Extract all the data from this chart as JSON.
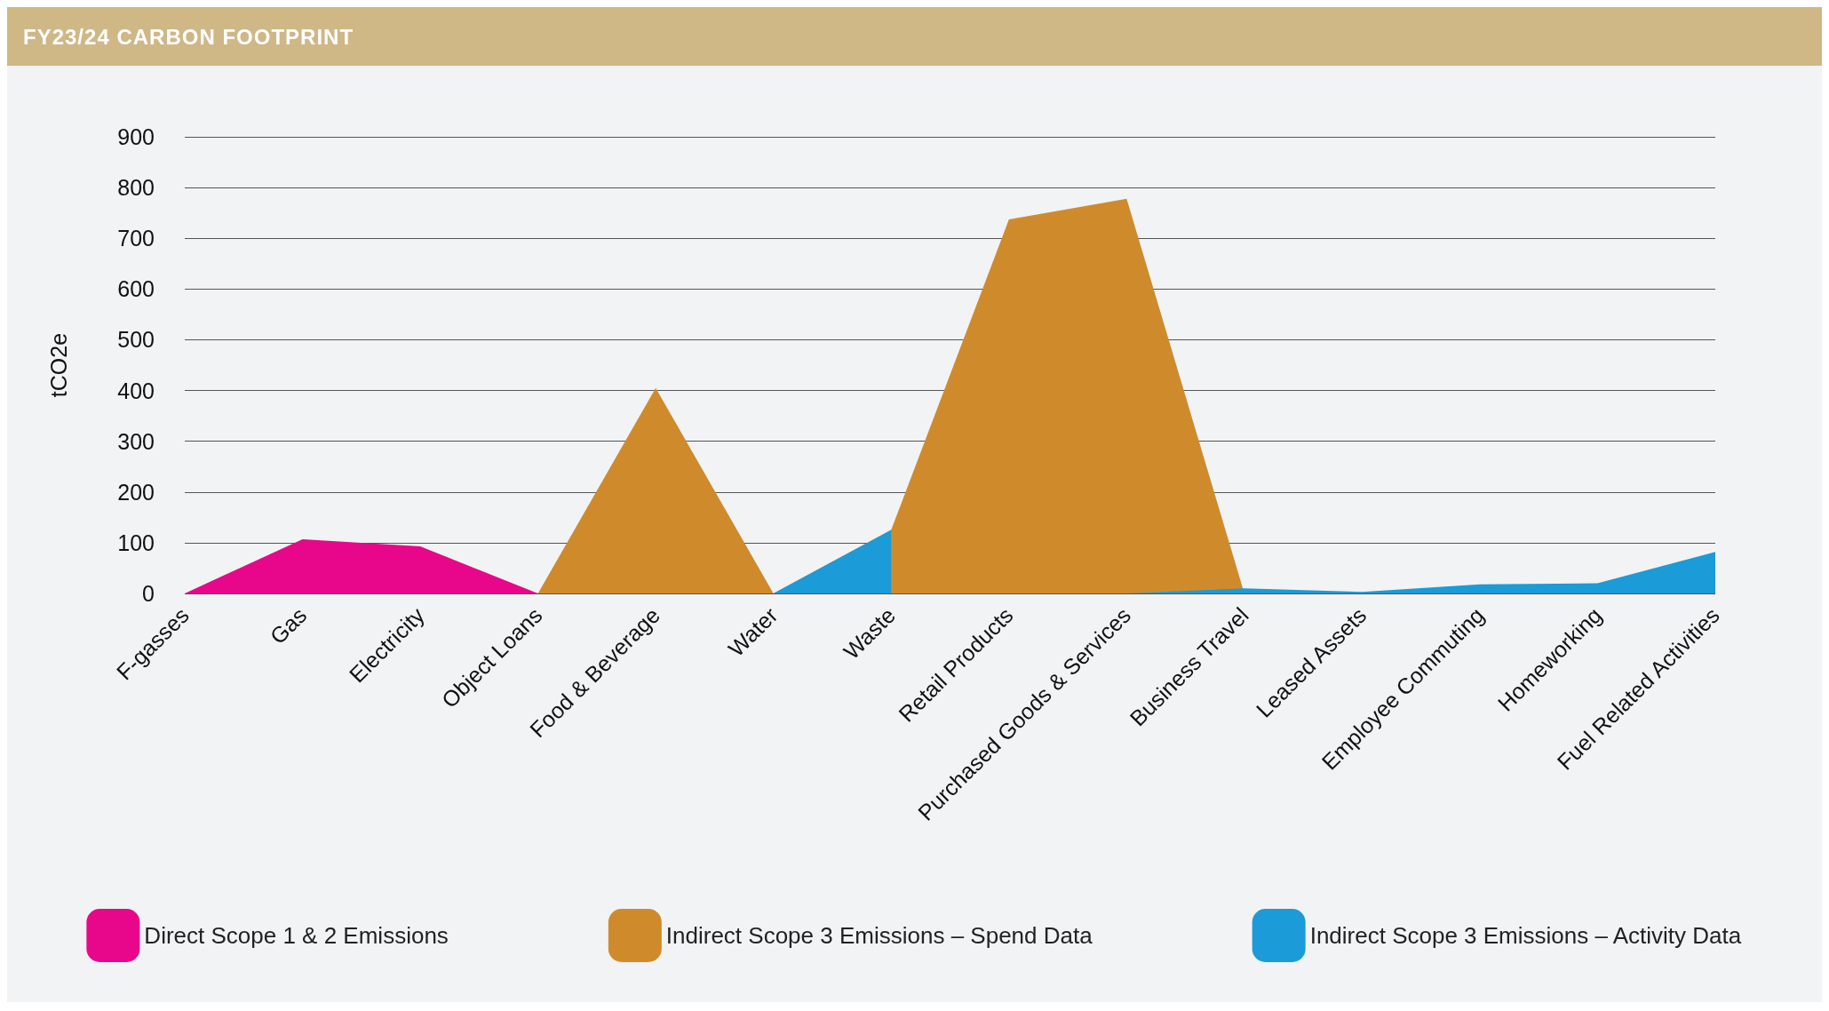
{
  "chart_data": {
    "type": "area",
    "title": "FY23/24 CARBON FOOTPRINT",
    "ylabel": "tCO2e",
    "categories": [
      "F-gasses",
      "Gas",
      "Electricity",
      "Object Loans",
      "Food & Beverage",
      "Water",
      "Waste",
      "Retail Products",
      "Purchased Goods & Services",
      "Business Travel",
      "Leased Assets",
      "Employee Commuting",
      "Homeworking",
      "Fuel Related Activities"
    ],
    "series": [
      {
        "name": "Direct Scope 1 & 2 Emissions",
        "color": "#e8078a",
        "values": [
          0,
          107,
          93,
          0,
          null,
          null,
          null,
          null,
          null,
          null,
          null,
          null,
          null,
          null
        ]
      },
      {
        "name": "Indirect Scope 3 Emissions – Spend Data",
        "color": "#cf8b2b",
        "values": [
          null,
          null,
          null,
          0,
          405,
          0,
          125,
          737,
          778,
          0,
          null,
          null,
          null,
          null
        ]
      },
      {
        "name": "Indirect Scope 3 Emissions – Activity Data",
        "color": "#1b9bd7",
        "values": [
          null,
          null,
          null,
          null,
          null,
          0,
          125,
          null,
          0,
          10,
          3,
          18,
          20,
          82
        ]
      }
    ],
    "ylim": [
      0,
      900
    ],
    "yticks": [
      0,
      100,
      200,
      300,
      400,
      500,
      600,
      700,
      800,
      900
    ],
    "grid": "y",
    "legend": "bottom"
  }
}
